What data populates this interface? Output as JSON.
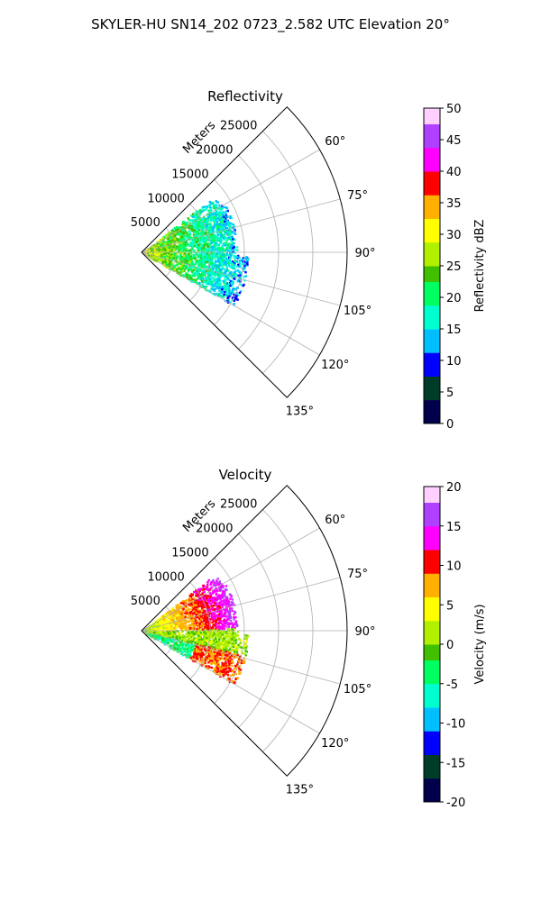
{
  "figure_title": "SKYLER-HU  SN14_202  0723_2.582 UTC Elevation 20°",
  "chart_data": [
    {
      "type": "heatmap",
      "projection": "polar-sector",
      "title": "Reflectivity",
      "radial_label": "Meters",
      "radial_ticks": [
        5000,
        10000,
        15000,
        20000,
        25000
      ],
      "r_max": 30000,
      "theta_ticks": [
        60,
        75,
        90,
        105,
        120,
        135
      ],
      "theta_tick_labels": [
        "60°",
        "75°",
        "90°",
        "105°",
        "120°",
        "135°"
      ],
      "theta_range_deg": [
        45,
        135
      ],
      "grid": true,
      "colorbar": {
        "label": "Reflectivity dBZ",
        "ticks": [
          0,
          5,
          10,
          15,
          20,
          25,
          30,
          35,
          40,
          45,
          50
        ],
        "range": [
          0,
          50
        ],
        "stops": [
          "#00004d",
          "#003c2a",
          "#0000ff",
          "#00bfff",
          "#00ffd0",
          "#00ff60",
          "#40c000",
          "#b0f000",
          "#ffff00",
          "#ffb000",
          "#ff0000",
          "#ff00ff",
          "#b040ff",
          "#ffd0ff"
        ]
      }
    },
    {
      "type": "heatmap",
      "projection": "polar-sector",
      "title": "Velocity",
      "radial_label": "Meters",
      "radial_ticks": [
        5000,
        10000,
        15000,
        20000,
        25000
      ],
      "r_max": 30000,
      "theta_ticks": [
        60,
        75,
        90,
        105,
        120,
        135
      ],
      "theta_tick_labels": [
        "60°",
        "75°",
        "90°",
        "105°",
        "120°",
        "135°"
      ],
      "theta_range_deg": [
        45,
        135
      ],
      "grid": true,
      "colorbar": {
        "label": "Velocity (m/s)",
        "ticks": [
          20,
          15,
          10,
          5,
          0,
          -5,
          -10,
          -15,
          -20
        ],
        "range": [
          -20,
          20
        ],
        "stops": [
          "#00004d",
          "#003c2a",
          "#0000ff",
          "#00bfff",
          "#00ffd0",
          "#00ff60",
          "#40c000",
          "#b0f000",
          "#ffff00",
          "#ffb000",
          "#ff0000",
          "#ff00ff",
          "#b040ff",
          "#ffd0ff"
        ]
      }
    }
  ]
}
